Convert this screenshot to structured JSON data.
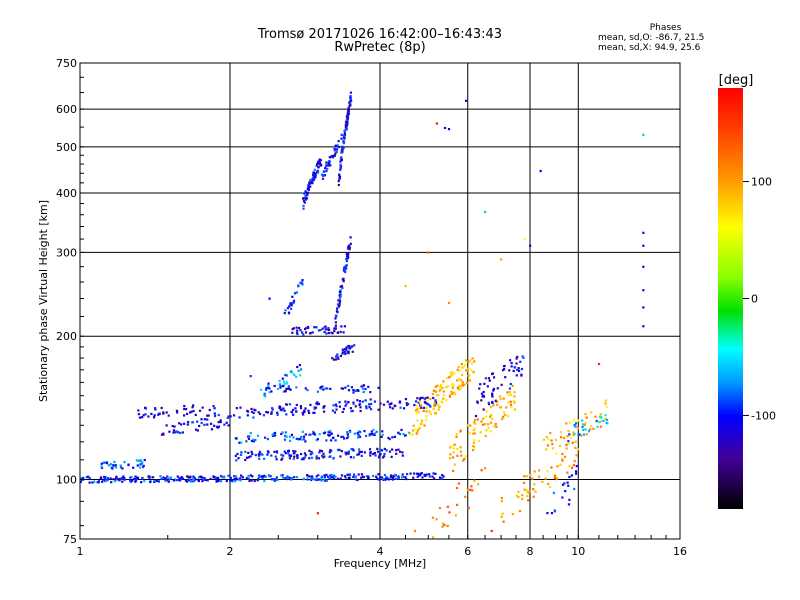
{
  "header": {
    "title": "Tromsø 20171026 16:42:00–16:43:43",
    "subtitle": "RwPretec (8p)"
  },
  "phases": {
    "title": "Phases",
    "line_o": "mean, sd,O: -86.7, 21.5",
    "line_x": "mean, sd,X:  94.9, 25.6"
  },
  "colorbar": {
    "label": "[deg]",
    "ticks": [
      "100",
      "0",
      "-100"
    ],
    "tick_values": [
      100,
      0,
      -100
    ],
    "range": [
      -180,
      180
    ]
  },
  "chart_data": {
    "type": "scatter",
    "title": "",
    "xlabel": "Frequency [MHz]",
    "ylabel": "Stationary phase Virtual Height [km]",
    "x_scale": "log",
    "y_scale": "log",
    "xlim": [
      1,
      16
    ],
    "ylim": [
      75,
      750
    ],
    "grid": true,
    "x_ticks": [
      1,
      2,
      4,
      6,
      8,
      10,
      16
    ],
    "x_tick_labels": [
      "1",
      "2",
      "4",
      "6",
      "8",
      "10",
      "16"
    ],
    "y_ticks": [
      75,
      100,
      200,
      300,
      400,
      500,
      600,
      750
    ],
    "y_tick_labels": [
      "75",
      "100",
      "200",
      "300",
      "400",
      "500",
      "600",
      "750"
    ],
    "color_by": "phase (deg)",
    "traces": [
      {
        "x_from": 1.0,
        "x_to": 3.4,
        "y_from": 100,
        "y_to": 101,
        "phase": -95,
        "n": 260,
        "jitter": 1.5
      },
      {
        "x_from": 3.4,
        "x_to": 5.4,
        "y_from": 101,
        "y_to": 102,
        "phase": -100,
        "n": 80,
        "jitter": 1.5
      },
      {
        "x_from": 1.1,
        "x_to": 1.35,
        "y_from": 107,
        "y_to": 108,
        "phase": -90,
        "n": 35,
        "jitter": 2
      },
      {
        "x_from": 2.05,
        "x_to": 4.5,
        "y_from": 112,
        "y_to": 114,
        "phase": -105,
        "n": 140,
        "jitter": 2.5
      },
      {
        "x_from": 2.05,
        "x_to": 4.6,
        "y_from": 122,
        "y_to": 125,
        "phase": -90,
        "n": 110,
        "jitter": 3
      },
      {
        "x_from": 1.45,
        "x_to": 2.0,
        "y_from": 128,
        "y_to": 132,
        "phase": -110,
        "n": 45,
        "jitter": 4
      },
      {
        "x_from": 1.3,
        "x_to": 1.9,
        "y_from": 138,
        "y_to": 140,
        "phase": -115,
        "n": 45,
        "jitter": 4
      },
      {
        "x_from": 2.0,
        "x_to": 5.2,
        "y_from": 138,
        "y_to": 146,
        "phase": -110,
        "n": 150,
        "jitter": 4
      },
      {
        "x_from": 2.5,
        "x_to": 4.0,
        "y_from": 155,
        "y_to": 155,
        "phase": -100,
        "n": 45,
        "jitter": 3
      },
      {
        "x_from": 2.3,
        "x_to": 2.8,
        "y_from": 150,
        "y_to": 172,
        "phase": -80,
        "n": 35,
        "jitter": 5
      },
      {
        "x_from": 2.65,
        "x_to": 3.4,
        "y_from": 205,
        "y_to": 207,
        "phase": -110,
        "n": 45,
        "jitter": 4
      },
      {
        "x_from": 2.55,
        "x_to": 2.8,
        "y_from": 215,
        "y_to": 260,
        "phase": -95,
        "n": 25,
        "jitter": 6
      },
      {
        "x_from": 3.25,
        "x_to": 3.5,
        "y_from": 210,
        "y_to": 320,
        "phase": -110,
        "n": 60,
        "jitter": 8
      },
      {
        "x_from": 3.2,
        "x_to": 3.55,
        "y_from": 180,
        "y_to": 190,
        "phase": -115,
        "n": 30,
        "jitter": 4
      },
      {
        "x_from": 2.8,
        "x_to": 3.05,
        "y_from": 380,
        "y_to": 470,
        "phase": -105,
        "n": 70,
        "jitter": 12
      },
      {
        "x_from": 3.3,
        "x_to": 3.5,
        "y_from": 420,
        "y_to": 640,
        "phase": -110,
        "n": 90,
        "jitter": 15
      },
      {
        "x_from": 3.05,
        "x_to": 3.35,
        "y_from": 430,
        "y_to": 520,
        "phase": -100,
        "n": 40,
        "jitter": 12
      },
      {
        "x_from": 4.6,
        "x_to": 6.2,
        "y_from": 130,
        "y_to": 175,
        "phase": 85,
        "n": 130,
        "jitter": 10
      },
      {
        "x_from": 5.5,
        "x_to": 7.5,
        "y_from": 110,
        "y_to": 150,
        "phase": 95,
        "n": 90,
        "jitter": 10
      },
      {
        "x_from": 6.2,
        "x_to": 7.8,
        "y_from": 145,
        "y_to": 175,
        "phase": -110,
        "n": 60,
        "jitter": 12
      },
      {
        "x_from": 7.0,
        "x_to": 10.0,
        "y_from": 85,
        "y_to": 115,
        "phase": 100,
        "n": 60,
        "jitter": 8
      },
      {
        "x_from": 8.5,
        "x_to": 11.5,
        "y_from": 115,
        "y_to": 140,
        "phase": 90,
        "n": 50,
        "jitter": 8
      },
      {
        "x_from": 9.5,
        "x_to": 11.5,
        "y_from": 125,
        "y_to": 135,
        "phase": -60,
        "n": 25,
        "jitter": 5
      },
      {
        "x_from": 5.0,
        "x_to": 6.5,
        "y_from": 80,
        "y_to": 100,
        "phase": 120,
        "n": 25,
        "jitter": 8
      },
      {
        "x_from": 8.5,
        "x_to": 10.0,
        "y_from": 80,
        "y_to": 100,
        "phase": -100,
        "n": 20,
        "jitter": 8
      }
    ],
    "points": [
      {
        "x": 5.4,
        "y": 548,
        "phase": -110
      },
      {
        "x": 5.5,
        "y": 545,
        "phase": -110
      },
      {
        "x": 5.2,
        "y": 560,
        "phase": 170
      },
      {
        "x": 5.95,
        "y": 625,
        "phase": -110
      },
      {
        "x": 8.4,
        "y": 445,
        "phase": -100
      },
      {
        "x": 13.5,
        "y": 530,
        "phase": -20
      },
      {
        "x": 13.5,
        "y": 330,
        "phase": -110
      },
      {
        "x": 13.5,
        "y": 310,
        "phase": -110
      },
      {
        "x": 13.5,
        "y": 280,
        "phase": -110
      },
      {
        "x": 13.5,
        "y": 250,
        "phase": -110
      },
      {
        "x": 13.5,
        "y": 230,
        "phase": -110
      },
      {
        "x": 13.5,
        "y": 210,
        "phase": -110
      },
      {
        "x": 6.5,
        "y": 365,
        "phase": -20
      },
      {
        "x": 7.0,
        "y": 290,
        "phase": 100
      },
      {
        "x": 7.8,
        "y": 320,
        "phase": 60
      },
      {
        "x": 8.0,
        "y": 310,
        "phase": -120
      },
      {
        "x": 5.0,
        "y": 300,
        "phase": 130
      },
      {
        "x": 4.5,
        "y": 255,
        "phase": 90
      },
      {
        "x": 5.5,
        "y": 235,
        "phase": 110
      },
      {
        "x": 3.0,
        "y": 85,
        "phase": 170
      },
      {
        "x": 4.7,
        "y": 78,
        "phase": 110
      },
      {
        "x": 6.7,
        "y": 78,
        "phase": 160
      },
      {
        "x": 11.0,
        "y": 175,
        "phase": 160
      },
      {
        "x": 2.2,
        "y": 165,
        "phase": -90
      },
      {
        "x": 2.4,
        "y": 240,
        "phase": -100
      }
    ]
  }
}
